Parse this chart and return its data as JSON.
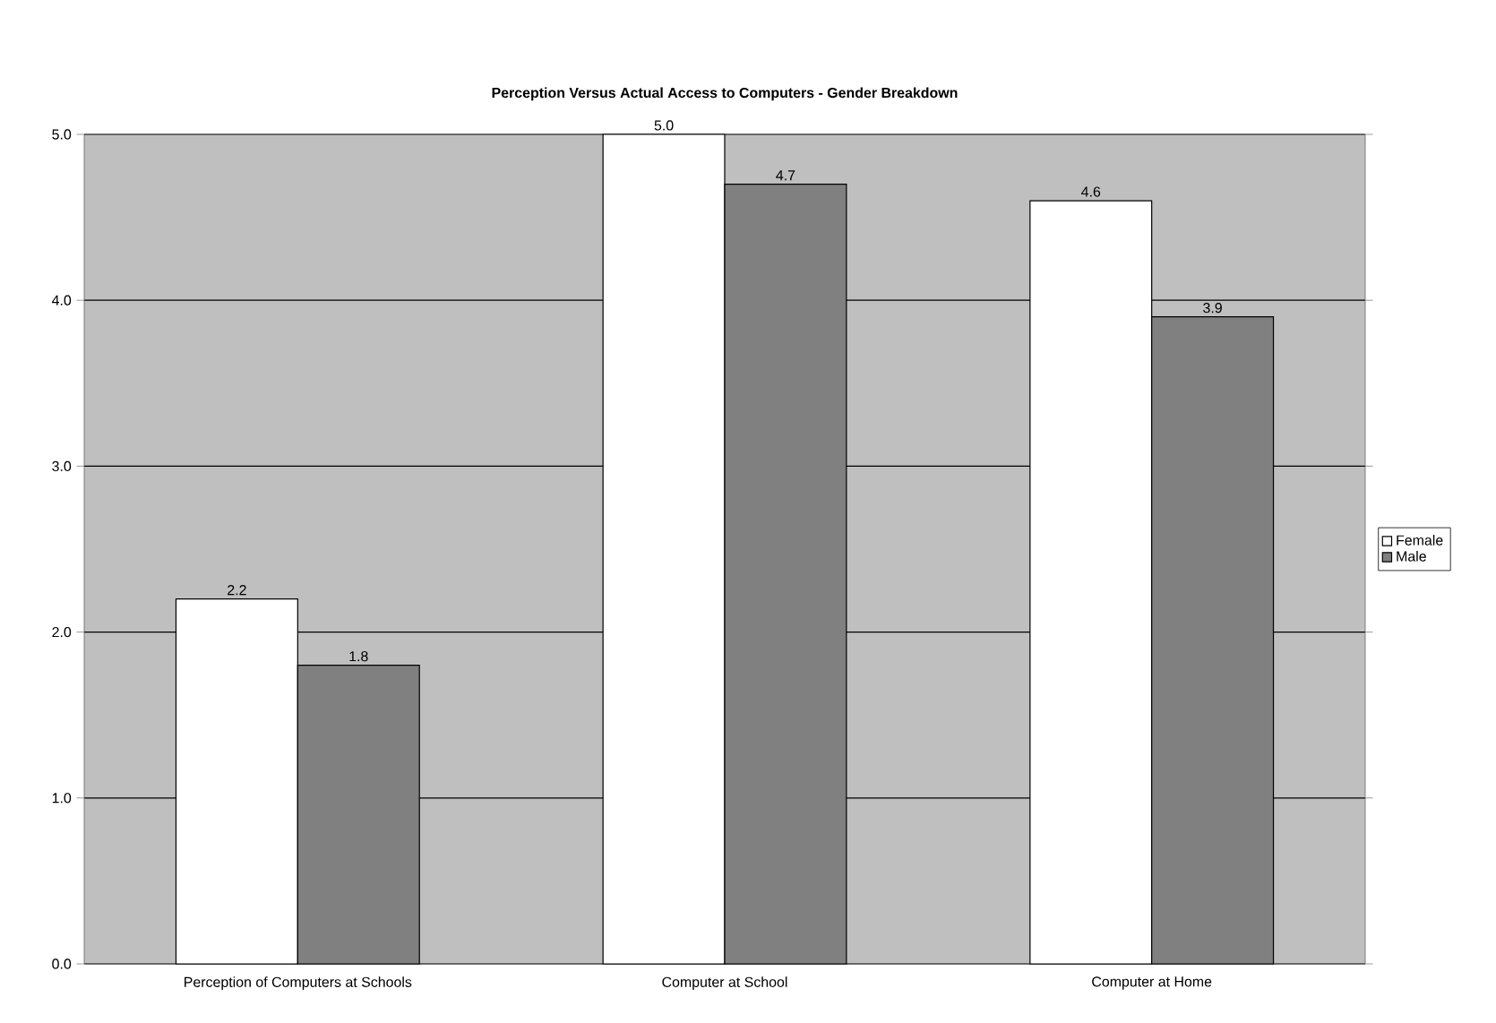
{
  "chart_data": {
    "type": "bar",
    "title": "Perception Versus Actual Access to Computers - Gender Breakdown",
    "categories": [
      "Perception of Computers at Schools",
      "Computer at School",
      "Computer at Home"
    ],
    "series": [
      {
        "name": "Female",
        "color": "#ffffff",
        "values": [
          2.2,
          5.0,
          4.6
        ],
        "value_labels": [
          "2.2",
          "5.0",
          "4.6"
        ]
      },
      {
        "name": "Male",
        "color": "#808080",
        "values": [
          1.8,
          4.7,
          3.9
        ],
        "value_labels": [
          "1.8",
          "4.7",
          "3.9"
        ]
      }
    ],
    "ylim": [
      0,
      5
    ],
    "yticks": [
      {
        "value": 0,
        "label": "0.0"
      },
      {
        "value": 1,
        "label": "1.0"
      },
      {
        "value": 2,
        "label": "2.0"
      },
      {
        "value": 3,
        "label": "3.0"
      },
      {
        "value": 4,
        "label": "4.0"
      },
      {
        "value": 5,
        "label": "5.0"
      }
    ],
    "grid": "y",
    "legend": "right"
  }
}
